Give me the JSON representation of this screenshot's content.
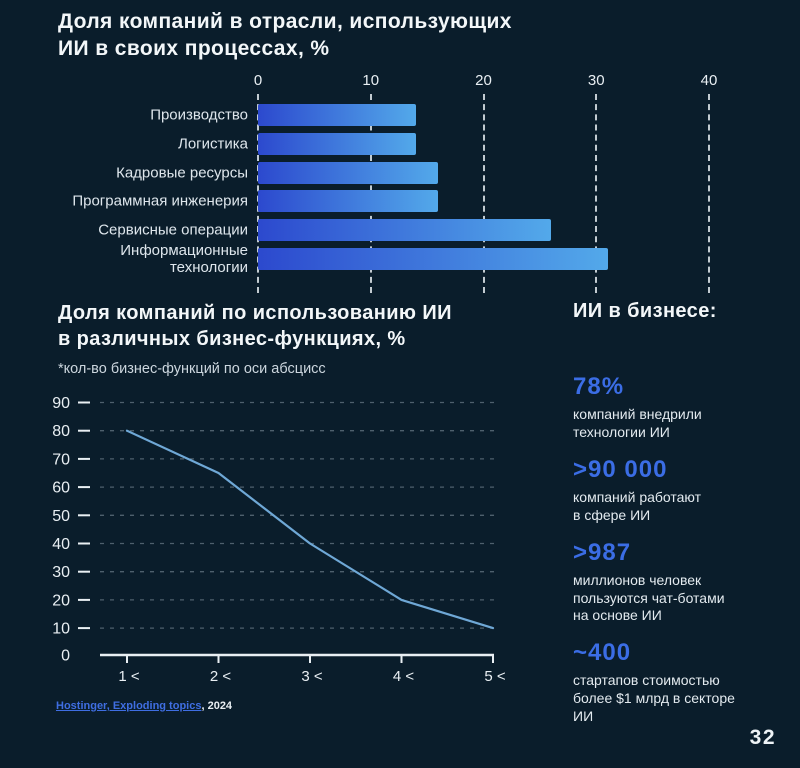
{
  "page": {
    "number": "32",
    "background": "#0a1d2b",
    "accent_blue": "#3b6de5"
  },
  "chart_data": [
    {
      "type": "bar",
      "orientation": "horizontal",
      "title": "Доля компаний в отрасли, использующих\nИИ в своих процессах, %",
      "categories": [
        "Производство",
        "Логистика",
        "Кадровые ресурсы",
        "Программная инженерия",
        "Сервисные операции",
        "Информационные\nтехнологии"
      ],
      "values": [
        14,
        14,
        16,
        16,
        26,
        31
      ],
      "xlim": [
        0,
        40
      ],
      "xticks": [
        0,
        10,
        20,
        30,
        40
      ],
      "grid": "vertical dashed white lines at xticks",
      "bar_gradient": [
        "#2c49ce",
        "#53a9ea"
      ]
    },
    {
      "type": "line",
      "title": "Доля компаний по использованию ИИ\nв различных бизнес-функциях, %",
      "note": "*кол-во бизнес-функций по оси абсцисс",
      "x": [
        1,
        2,
        3,
        4,
        5
      ],
      "x_tick_labels": [
        "1 <",
        "2 <",
        "3 <",
        "4 <",
        "5 <"
      ],
      "y": [
        80,
        65,
        40,
        20,
        10
      ],
      "ylim": [
        0,
        90
      ],
      "yticks": [
        90,
        80,
        70,
        60,
        50,
        40,
        30,
        20,
        10,
        0
      ],
      "grid": "horizontal dashed gridlines",
      "line_color": "#6fa8d6"
    }
  ],
  "stats": {
    "heading": "ИИ в бизнесе:",
    "items": [
      {
        "value": "78%",
        "lines": [
          "компаний внедрили",
          "технологии ИИ"
        ]
      },
      {
        "value": ">90 000",
        "lines": [
          "компаний работают",
          "в сфере ИИ"
        ]
      },
      {
        "value": ">987",
        "lines": [
          "миллионов человек",
          "пользуются чат-ботами",
          "на основе ИИ"
        ]
      },
      {
        "value": "~400",
        "lines": [
          "стартапов стоимостью",
          "более $1 млрд в секторе",
          "ИИ"
        ]
      }
    ]
  },
  "source": {
    "link_text": "Hostinger, Exploding topics",
    "year_suffix": ", 2024"
  }
}
